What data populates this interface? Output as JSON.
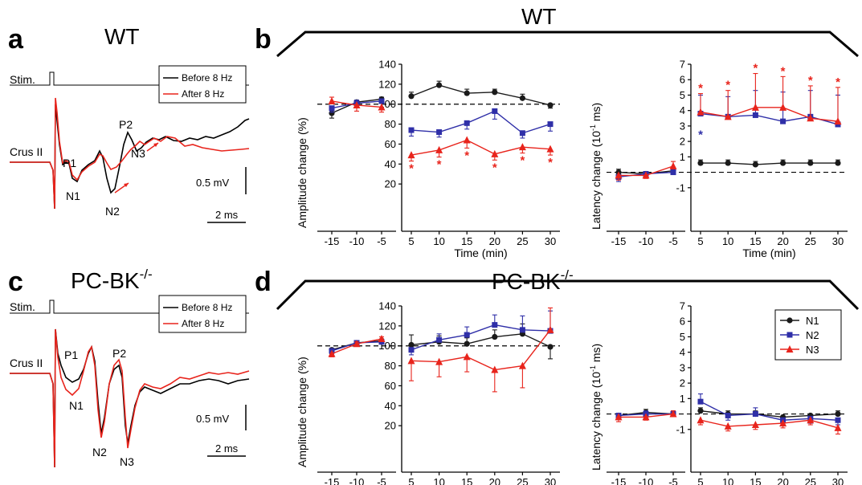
{
  "colors": {
    "N1": "#1a1a1a",
    "N2": "#2f2fa8",
    "N3": "#e8241c",
    "before": "#000000",
    "after": "#e8241c"
  },
  "panels": {
    "a": {
      "letter": "a",
      "title": "WT"
    },
    "b": {
      "letter": "b",
      "title": "WT"
    },
    "c": {
      "letter": "c",
      "title_main": "PC-BK",
      "title_sup": "-/-"
    },
    "d": {
      "letter": "d",
      "title_main": "PC-BK",
      "title_sup": "-/-"
    }
  },
  "traces": {
    "a": {
      "stim_label": "Stim.",
      "site_label": "Crus II",
      "legend": [
        "Before 8 Hz",
        "After 8 Hz"
      ],
      "peaks": [
        "P1",
        "N1",
        "P2",
        "N2",
        "N3"
      ],
      "scale_v": "0.5 mV",
      "scale_t": "2 ms"
    },
    "c": {
      "stim_label": "Stim.",
      "site_label": "Crus II",
      "legend": [
        "Before 8 Hz",
        "After 8 Hz"
      ],
      "peaks": [
        "P1",
        "N1",
        "P2",
        "N2",
        "N3"
      ],
      "scale_v": "0.5 mV",
      "scale_t": "2 ms"
    }
  },
  "axes": {
    "amplitude": {
      "ylabel": "Amplitude change (%)",
      "yticks": [
        "20",
        "40",
        "60",
        "80",
        "100",
        "120",
        "140"
      ]
    },
    "latency": {
      "ylabel_main": "Latency change (10",
      "ylabel_sup": "-1",
      "ylabel_end": " ms)",
      "yticks": [
        "-1",
        "1",
        "2",
        "3",
        "4",
        "5",
        "6",
        "7"
      ]
    },
    "xlabel": "Time (min)",
    "xticks_pre": [
      "-15",
      "-10",
      "-5"
    ],
    "xticks_post": [
      "5",
      "10",
      "15",
      "20",
      "25",
      "30"
    ]
  },
  "legend_d": [
    "N1",
    "N2",
    "N3"
  ],
  "chart_data": [
    {
      "type": "line",
      "panel": "b",
      "measure": "amplitude",
      "ylabel": "Amplitude change (%)",
      "xlabel": "Time (min)",
      "ylim": [
        0,
        140
      ],
      "x_pre": [
        -15,
        -10,
        -5
      ],
      "x_post": [
        5,
        10,
        15,
        20,
        25,
        30
      ],
      "series": [
        {
          "name": "N1",
          "pre": [
            91,
            102,
            105
          ],
          "pre_err": [
            5,
            2,
            2
          ],
          "post": [
            108,
            119,
            111,
            112,
            106,
            99
          ],
          "post_err": [
            4,
            4,
            4,
            3,
            4,
            3
          ]
        },
        {
          "name": "N2",
          "pre": [
            96,
            101,
            103
          ],
          "pre_err": [
            4,
            3,
            2
          ],
          "post": [
            74,
            72,
            81,
            93,
            71,
            80
          ],
          "post_err": [
            6,
            5,
            6,
            8,
            5,
            7
          ]
        },
        {
          "name": "N3",
          "pre": [
            103,
            99,
            97
          ],
          "pre_err": [
            4,
            6,
            5
          ],
          "post": [
            49,
            54,
            64,
            50,
            57,
            55
          ],
          "post_err": [
            6,
            7,
            8,
            6,
            6,
            6
          ]
        }
      ],
      "significant": {
        "N3": [
          5,
          10,
          15,
          20,
          25,
          30
        ]
      }
    },
    {
      "type": "line",
      "panel": "b",
      "measure": "latency",
      "ylabel": "Latency change (10-1 ms)",
      "xlabel": "Time (min)",
      "ylim": [
        -2,
        7
      ],
      "x_pre": [
        -15,
        -10,
        -5
      ],
      "x_post": [
        5,
        10,
        15,
        20,
        25,
        30
      ],
      "series": [
        {
          "name": "N1",
          "pre": [
            0.0,
            -0.1,
            0.1
          ],
          "pre_err": [
            0.2,
            0.2,
            0.1
          ],
          "post": [
            0.6,
            0.6,
            0.5,
            0.6,
            0.6,
            0.6
          ],
          "post_err": [
            0.2,
            0.2,
            0.2,
            0.2,
            0.2,
            0.2
          ]
        },
        {
          "name": "N2",
          "pre": [
            -0.3,
            -0.1,
            0.0
          ],
          "pre_err": [
            0.3,
            0.2,
            0.2
          ],
          "post": [
            3.8,
            3.6,
            3.7,
            3.3,
            3.6,
            3.1
          ],
          "post_err": [
            1.2,
            1.3,
            1.6,
            1.9,
            1.7,
            1.9
          ]
        },
        {
          "name": "N3",
          "pre": [
            -0.2,
            -0.2,
            0.4
          ],
          "pre_err": [
            0.3,
            0.2,
            0.3
          ],
          "post": [
            3.9,
            3.6,
            4.2,
            4.2,
            3.5,
            3.3
          ],
          "post_err": [
            1.2,
            1.7,
            2.2,
            2.0,
            2.1,
            2.2
          ]
        }
      ],
      "significant": {
        "N3": [
          5,
          10,
          15,
          20,
          25,
          30
        ],
        "N2": [
          5
        ]
      }
    },
    {
      "type": "line",
      "panel": "d",
      "measure": "amplitude",
      "ylabel": "Amplitude change (%)",
      "xlabel": "Time (min)",
      "ylim": [
        0,
        140
      ],
      "x_pre": [
        -15,
        -10,
        -5
      ],
      "x_post": [
        5,
        10,
        15,
        20,
        25,
        30
      ],
      "series": [
        {
          "name": "N1",
          "pre": [
            96,
            103,
            105
          ],
          "pre_err": [
            3,
            2,
            2
          ],
          "post": [
            101,
            104,
            102,
            109,
            112,
            99
          ],
          "post_err": [
            10,
            6,
            6,
            7,
            10,
            12
          ]
        },
        {
          "name": "N2",
          "pre": [
            95,
            103,
            104
          ],
          "pre_err": [
            3,
            2,
            2
          ],
          "post": [
            96,
            106,
            111,
            121,
            116,
            115
          ],
          "post_err": [
            5,
            6,
            8,
            10,
            14,
            20
          ]
        },
        {
          "name": "N3",
          "pre": [
            92,
            102,
            107
          ],
          "pre_err": [
            3,
            2,
            2
          ],
          "post": [
            85,
            84,
            89,
            76,
            80,
            116
          ],
          "post_err": [
            20,
            15,
            15,
            22,
            22,
            22
          ]
        }
      ],
      "significant": {}
    },
    {
      "type": "line",
      "panel": "d",
      "measure": "latency",
      "ylabel": "Latency change (10-1 ms)",
      "xlabel": "Time (min)",
      "ylim": [
        -2,
        7
      ],
      "x_pre": [
        -15,
        -10,
        -5
      ],
      "x_post": [
        5,
        10,
        15,
        20,
        25,
        30
      ],
      "series": [
        {
          "name": "N1",
          "pre": [
            -0.1,
            0.1,
            0.0
          ],
          "pre_err": [
            0.2,
            0.2,
            0.2
          ],
          "post": [
            0.2,
            0.0,
            0.0,
            -0.2,
            -0.1,
            0.0
          ],
          "post_err": [
            0.2,
            0.2,
            0.2,
            0.2,
            0.2,
            0.2
          ]
        },
        {
          "name": "N2",
          "pre": [
            -0.1,
            0.0,
            0.0
          ],
          "pre_err": [
            0.2,
            0.2,
            0.2
          ],
          "post": [
            0.8,
            -0.1,
            0.0,
            -0.4,
            -0.3,
            -0.4
          ],
          "post_err": [
            0.5,
            0.3,
            0.4,
            0.3,
            0.3,
            0.3
          ]
        },
        {
          "name": "N3",
          "pre": [
            -0.2,
            -0.2,
            0.0
          ],
          "pre_err": [
            0.3,
            0.2,
            0.2
          ],
          "post": [
            -0.4,
            -0.8,
            -0.7,
            -0.6,
            -0.4,
            -0.9
          ],
          "post_err": [
            0.3,
            0.3,
            0.3,
            0.3,
            0.3,
            0.4
          ]
        }
      ],
      "significant": {}
    }
  ]
}
